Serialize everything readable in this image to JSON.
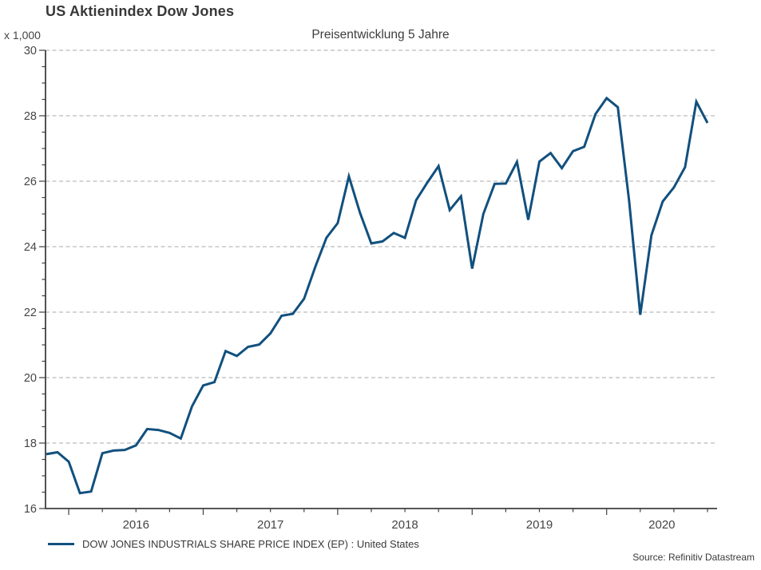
{
  "header": {
    "title": "US Aktienindex Dow Jones",
    "subtitle": "Preisentwicklung 5 Jahre"
  },
  "axes": {
    "y_units_label": "x 1,000",
    "y_tick_labels": [
      "16",
      "18",
      "20",
      "22",
      "24",
      "26",
      "28",
      "30"
    ],
    "x_tick_labels": [
      "2016",
      "2017",
      "2018",
      "2019",
      "2020"
    ]
  },
  "legend": {
    "label": "DOW JONES INDUSTRIALS SHARE PRICE INDEX (EP) : United States"
  },
  "footer": {
    "source": "Source: Refinitiv Datastream"
  },
  "colors": {
    "line": "#11507E",
    "grid": "#AAAAAA",
    "axis": "#3F3F3F",
    "tick_text": "#454545"
  },
  "chart_data": {
    "type": "line",
    "title": "US Aktienindex Dow Jones",
    "subtitle": "Preisentwicklung 5 Jahre",
    "y_units": "x 1,000",
    "ylim": [
      16,
      30
    ],
    "yticks": [
      16,
      18,
      20,
      22,
      24,
      26,
      28,
      30
    ],
    "y_minor_tick_step": 0.5,
    "x_year_labels": [
      "2016",
      "2017",
      "2018",
      "2019",
      "2020"
    ],
    "grid": "horizontal-dashed",
    "legend_position": "bottom-left",
    "series": [
      {
        "name": "DOW JONES INDUSTRIALS SHARE PRICE INDEX (EP) : United States",
        "color": "#11507E",
        "start": "Oct 2015",
        "frequency": "monthly",
        "values": [
          17.66,
          17.72,
          17.43,
          16.47,
          16.52,
          17.69,
          17.77,
          17.79,
          17.93,
          18.43,
          18.4,
          18.31,
          18.14,
          19.12,
          19.76,
          19.86,
          20.81,
          20.66,
          20.94,
          21.01,
          21.35,
          21.89,
          21.95,
          22.41,
          23.38,
          24.27,
          24.72,
          26.15,
          25.03,
          24.1,
          24.16,
          24.42,
          24.27,
          25.42,
          25.96,
          26.46,
          25.12,
          25.54,
          23.33,
          25.0,
          25.92,
          25.93,
          26.59,
          24.82,
          26.6,
          26.86,
          26.4,
          26.92,
          27.05,
          28.05,
          28.54,
          28.26,
          25.41,
          21.92,
          24.35,
          25.38,
          25.81,
          26.43,
          28.43,
          27.78
        ]
      }
    ]
  }
}
